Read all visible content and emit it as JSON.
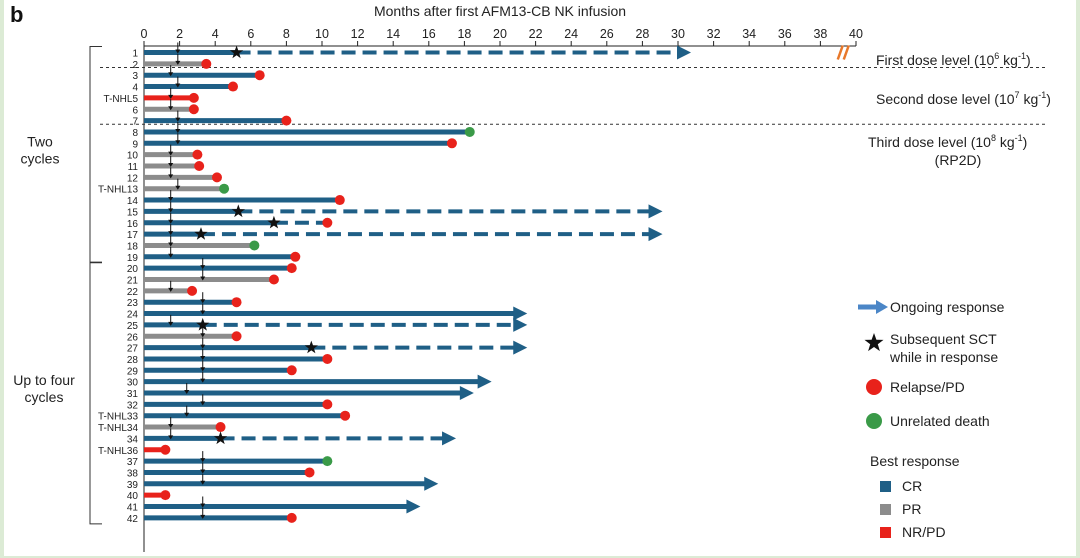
{
  "panel_label": "b",
  "chart_data": {
    "type": "swimmer",
    "title": "Months after first AFM13-CB NK infusion",
    "x_ticks": [
      0,
      2,
      4,
      6,
      8,
      10,
      12,
      14,
      16,
      18,
      20,
      22,
      24,
      26,
      28,
      30,
      32,
      34,
      36,
      38,
      40
    ],
    "xlim": [
      0,
      40
    ],
    "groups": [
      {
        "label_lines": [
          "Two",
          "cycles"
        ],
        "first": "1",
        "last": "19"
      },
      {
        "label_lines": [
          "Up to four",
          "cycles"
        ],
        "first": "20",
        "last": "42"
      }
    ],
    "dose_levels": [
      {
        "text": "First dose level (10",
        "sup": "6",
        "tail": " kg",
        "sup2": "-1",
        "close": ")"
      },
      {
        "text": "Second dose level (10",
        "sup": "7",
        "tail": " kg",
        "sup2": "-1",
        "close": ")"
      },
      {
        "text": "Third dose level (10",
        "sup": "8",
        "tail": " kg",
        "sup2": "-1",
        "close": ")",
        "line2": "(RP2D)"
      }
    ],
    "legend": {
      "symbols": [
        {
          "key": "arrow",
          "label": "Ongoing response"
        },
        {
          "key": "star",
          "label": "Subsequent SCT",
          "label2": "while in response"
        },
        {
          "key": "red_dot",
          "label": "Relapse/PD"
        },
        {
          "key": "green_dot",
          "label": "Unrelated death"
        }
      ],
      "best_response_title": "Best response",
      "best_response": [
        {
          "key": "CR",
          "label": "CR",
          "color": "#1f5f86"
        },
        {
          "key": "PR",
          "label": "PR",
          "color": "#8c8c8c"
        },
        {
          "key": "NRPD",
          "label": "NR/PD",
          "color": "#e8221b"
        }
      ]
    },
    "colors": {
      "CR": "#1f5f86",
      "PR": "#8c8c8c",
      "NRPD": "#e8221b",
      "relapse": "#e8221b",
      "death": "#3a9a48",
      "legend_arrow": "#4b86c7",
      "break": "#e8782a"
    },
    "patients": [
      {
        "id": "1",
        "resp": "CR",
        "end": 30.0,
        "arrow": true,
        "dashed_from": 5.2,
        "star": 5.2,
        "infusions": [
          1.9
        ],
        "broken": true
      },
      {
        "id": "2",
        "resp": "PR",
        "end": 3.5,
        "event": "relapse",
        "infusions": [
          1.9
        ]
      },
      {
        "id": "3",
        "resp": "CR",
        "end": 6.5,
        "event": "relapse",
        "infusions": [
          1.5
        ]
      },
      {
        "id": "4",
        "resp": "CR",
        "end": 5.0,
        "event": "relapse",
        "infusions": [
          1.9
        ]
      },
      {
        "id": "T-NHL5",
        "resp": "NRPD",
        "end": 2.8,
        "event": "relapse",
        "infusions": [
          1.5
        ]
      },
      {
        "id": "6",
        "resp": "PR",
        "end": 2.8,
        "event": "relapse",
        "infusions": [
          1.5
        ]
      },
      {
        "id": "7",
        "resp": "CR",
        "end": 8.0,
        "event": "relapse",
        "infusions": [
          1.9
        ]
      },
      {
        "id": "8",
        "resp": "CR",
        "end": 18.3,
        "event": "death",
        "infusions": [
          1.9
        ]
      },
      {
        "id": "9",
        "resp": "CR",
        "end": 17.3,
        "event": "relapse",
        "infusions": [
          1.9
        ]
      },
      {
        "id": "10",
        "resp": "PR",
        "end": 3.0,
        "event": "relapse",
        "infusions": [
          1.5
        ]
      },
      {
        "id": "11",
        "resp": "PR",
        "end": 3.1,
        "event": "relapse",
        "infusions": [
          1.5
        ]
      },
      {
        "id": "12",
        "resp": "PR",
        "end": 4.1,
        "event": "relapse",
        "infusions": [
          1.5
        ]
      },
      {
        "id": "T-NHL13",
        "resp": "PR",
        "end": 4.5,
        "event": "death",
        "infusions": [
          1.9
        ]
      },
      {
        "id": "14",
        "resp": "CR",
        "end": 11.0,
        "event": "relapse",
        "infusions": [
          1.5
        ]
      },
      {
        "id": "15",
        "resp": "CR",
        "end": 28.4,
        "arrow": true,
        "dashed_from": 5.3,
        "star": 5.3,
        "infusions": [
          1.5
        ]
      },
      {
        "id": "16",
        "resp": "CR",
        "end": 10.3,
        "event": "relapse",
        "dashed_from": 7.3,
        "star": 7.3,
        "infusions": [
          1.5
        ]
      },
      {
        "id": "17",
        "resp": "CR",
        "end": 28.4,
        "arrow": true,
        "dashed_from": 3.2,
        "star": 3.2,
        "infusions": [
          1.5
        ]
      },
      {
        "id": "18",
        "resp": "PR",
        "end": 6.2,
        "event": "death",
        "infusions": [
          1.5
        ]
      },
      {
        "id": "19",
        "resp": "CR",
        "end": 8.5,
        "event": "relapse",
        "infusions": [
          1.5
        ]
      },
      {
        "id": "20",
        "resp": "CR",
        "end": 8.3,
        "event": "relapse",
        "infusions": [
          3.3
        ]
      },
      {
        "id": "21",
        "resp": "PR",
        "end": 7.3,
        "event": "relapse",
        "infusions": [
          3.3
        ]
      },
      {
        "id": "22",
        "resp": "PR",
        "end": 2.7,
        "event": "relapse",
        "infusions": [
          1.5
        ]
      },
      {
        "id": "23",
        "resp": "CR",
        "end": 5.2,
        "event": "relapse",
        "infusions": [
          3.3
        ]
      },
      {
        "id": "24",
        "resp": "CR",
        "end": 20.8,
        "arrow": true,
        "infusions": [
          3.3
        ]
      },
      {
        "id": "25",
        "resp": "CR",
        "end": 20.8,
        "arrow": true,
        "dashed_from": 3.3,
        "star": 3.3,
        "infusions": [
          1.5
        ]
      },
      {
        "id": "26",
        "resp": "PR",
        "end": 5.2,
        "event": "relapse",
        "infusions": [
          3.3
        ]
      },
      {
        "id": "27",
        "resp": "CR",
        "end": 20.8,
        "arrow": true,
        "dashed_from": 9.4,
        "star": 9.4,
        "infusions": [
          3.3
        ]
      },
      {
        "id": "28",
        "resp": "CR",
        "end": 10.3,
        "event": "relapse",
        "infusions": [
          3.3
        ]
      },
      {
        "id": "29",
        "resp": "CR",
        "end": 8.3,
        "event": "relapse",
        "infusions": [
          3.3
        ]
      },
      {
        "id": "30",
        "resp": "CR",
        "end": 18.8,
        "arrow": true,
        "infusions": [
          3.3
        ]
      },
      {
        "id": "31",
        "resp": "CR",
        "end": 17.8,
        "arrow": true,
        "infusions": [
          2.4
        ]
      },
      {
        "id": "32",
        "resp": "CR",
        "end": 10.3,
        "event": "relapse",
        "infusions": [
          3.3
        ]
      },
      {
        "id": "T-NHL33",
        "resp": "CR",
        "end": 11.3,
        "event": "relapse",
        "infusions": [
          2.4
        ]
      },
      {
        "id": "T-NHL34",
        "resp": "PR",
        "end": 4.3,
        "event": "relapse",
        "infusions": [
          1.5
        ]
      },
      {
        "id": "34",
        "resp": "CR",
        "end": 16.8,
        "arrow": true,
        "dashed_from": 4.3,
        "star": 4.3,
        "infusions": [
          1.5
        ]
      },
      {
        "id": "T-NHL36",
        "resp": "NRPD",
        "end": 1.2,
        "event": "relapse",
        "infusions": []
      },
      {
        "id": "37",
        "resp": "CR",
        "end": 10.3,
        "event": "death",
        "infusions": [
          3.3
        ]
      },
      {
        "id": "38",
        "resp": "CR",
        "end": 9.3,
        "event": "relapse",
        "infusions": [
          3.3
        ]
      },
      {
        "id": "39",
        "resp": "CR",
        "end": 15.8,
        "arrow": true,
        "infusions": [
          3.3
        ]
      },
      {
        "id": "40",
        "resp": "NRPD",
        "end": 1.2,
        "event": "relapse",
        "infusions": []
      },
      {
        "id": "41",
        "resp": "CR",
        "end": 14.8,
        "arrow": true,
        "infusions": [
          3.3
        ]
      },
      {
        "id": "42",
        "resp": "CR",
        "end": 8.3,
        "event": "relapse",
        "infusions": [
          3.3
        ]
      }
    ]
  }
}
